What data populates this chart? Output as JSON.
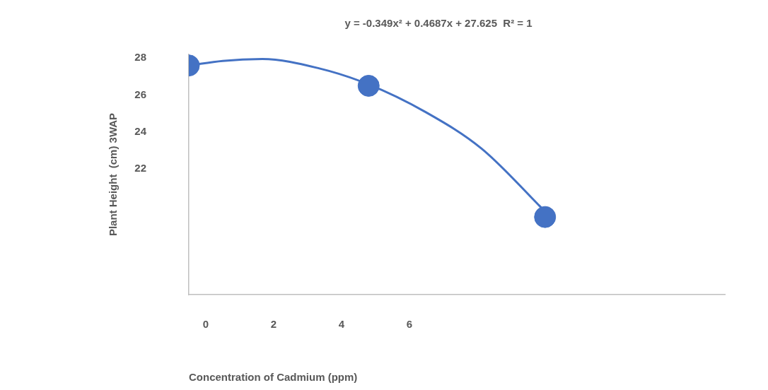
{
  "chart_data": {
    "type": "scatter",
    "xlabel": "Concentration of Cadmium (ppm)",
    "ylabel": "Plant Height  (cm) 3WAP",
    "annotations": [
      "y = -0.349x² + 0.4687x + 27.625  R² = 1"
    ],
    "xlim": [
      -0.5,
      15.3
    ],
    "xticks": [
      0,
      2,
      4,
      6
    ],
    "ylim": [
      15.2,
      28.2
    ],
    "yticks": [
      22,
      24,
      26,
      28
    ],
    "grid": false,
    "marker": "circle",
    "series": [
      {
        "color": "#4472c4",
        "x": [
          -0.5,
          4.8,
          10
        ],
        "values": [
          27.6,
          26.5,
          19.4
        ]
      },
      {
        "type": "line",
        "color": "#4472c4",
        "marker": "none",
        "x": [
          -0.48,
          0.5,
          1.67,
          3.33,
          4.77,
          6.46,
          8.13,
          10.0
        ],
        "values": [
          27.6,
          27.85,
          27.95,
          27.45,
          26.6,
          25.1,
          23.1,
          19.7
        ]
      }
    ]
  }
}
